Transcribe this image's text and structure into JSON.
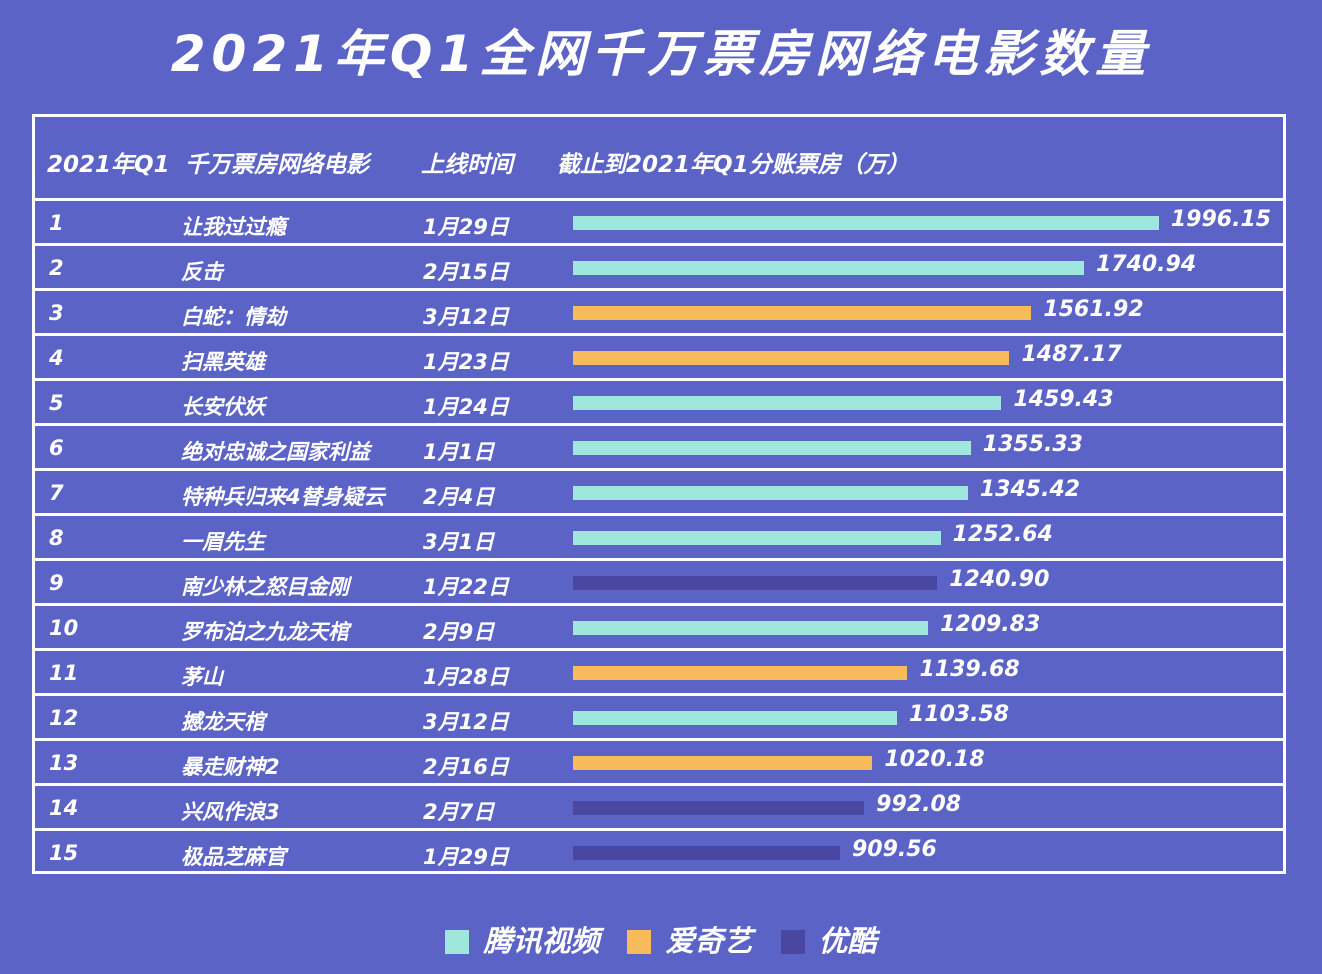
{
  "title": "2021年Q1全网千万票房网络电影数量",
  "colors": {
    "tencent": "#9fe6dc",
    "iqiyi": "#f7bb5c",
    "youku": "#4a47a3"
  },
  "header": {
    "col1": "2021年Q1",
    "col2": "千万票房网络电影",
    "col3": "上线时间",
    "col4": "截止到2021年Q1分账票房（万）"
  },
  "legend": [
    {
      "platform": "tencent",
      "label": "腾讯视频"
    },
    {
      "platform": "iqiyi",
      "label": "爱奇艺"
    },
    {
      "platform": "youku",
      "label": "优酷"
    }
  ],
  "chart_data": {
    "type": "bar",
    "orientation": "horizontal",
    "title": "2021年Q1全网千万票房网络电影数量",
    "xlim": [
      0,
      2000
    ],
    "rows": [
      {
        "rank": "1",
        "name": "让我过过瘾",
        "date": "1月29日",
        "value": 1996.15,
        "value_label": "1996.15",
        "platform": "tencent"
      },
      {
        "rank": "2",
        "name": "反击",
        "date": "2月15日",
        "value": 1740.94,
        "value_label": "1740.94",
        "platform": "tencent"
      },
      {
        "rank": "3",
        "name": "白蛇：情劫",
        "date": "3月12日",
        "value": 1561.92,
        "value_label": "1561.92",
        "platform": "iqiyi"
      },
      {
        "rank": "4",
        "name": "扫黑英雄",
        "date": "1月23日",
        "value": 1487.17,
        "value_label": "1487.17",
        "platform": "iqiyi"
      },
      {
        "rank": "5",
        "name": "长安伏妖",
        "date": "1月24日",
        "value": 1459.43,
        "value_label": "1459.43",
        "platform": "tencent"
      },
      {
        "rank": "6",
        "name": "绝对忠诚之国家利益",
        "date": "1月1日",
        "value": 1355.33,
        "value_label": "1355.33",
        "platform": "tencent"
      },
      {
        "rank": "7",
        "name": "特种兵归来4替身疑云",
        "date": "2月4日",
        "value": 1345.42,
        "value_label": "1345.42",
        "platform": "tencent"
      },
      {
        "rank": "8",
        "name": "一眉先生",
        "date": "3月1日",
        "value": 1252.64,
        "value_label": "1252.64",
        "platform": "tencent"
      },
      {
        "rank": "9",
        "name": "南少林之怒目金刚",
        "date": "1月22日",
        "value": 1240.9,
        "value_label": "1240.90",
        "platform": "youku"
      },
      {
        "rank": "10",
        "name": "罗布泊之九龙天棺",
        "date": "2月9日",
        "value": 1209.83,
        "value_label": "1209.83",
        "platform": "tencent"
      },
      {
        "rank": "11",
        "name": "茅山",
        "date": "1月28日",
        "value": 1139.68,
        "value_label": "1139.68",
        "platform": "iqiyi"
      },
      {
        "rank": "12",
        "name": "撼龙天棺",
        "date": "3月12日",
        "value": 1103.58,
        "value_label": "1103.58",
        "platform": "tencent"
      },
      {
        "rank": "13",
        "name": "暴走财神2",
        "date": "2月16日",
        "value": 1020.18,
        "value_label": "1020.18",
        "platform": "iqiyi"
      },
      {
        "rank": "14",
        "name": "兴风作浪3",
        "date": "2月7日",
        "value": 992.08,
        "value_label": "992.08",
        "platform": "youku"
      },
      {
        "rank": "15",
        "name": "极品芝麻官",
        "date": "1月29日",
        "value": 909.56,
        "value_label": "909.56",
        "platform": "youku"
      }
    ]
  }
}
